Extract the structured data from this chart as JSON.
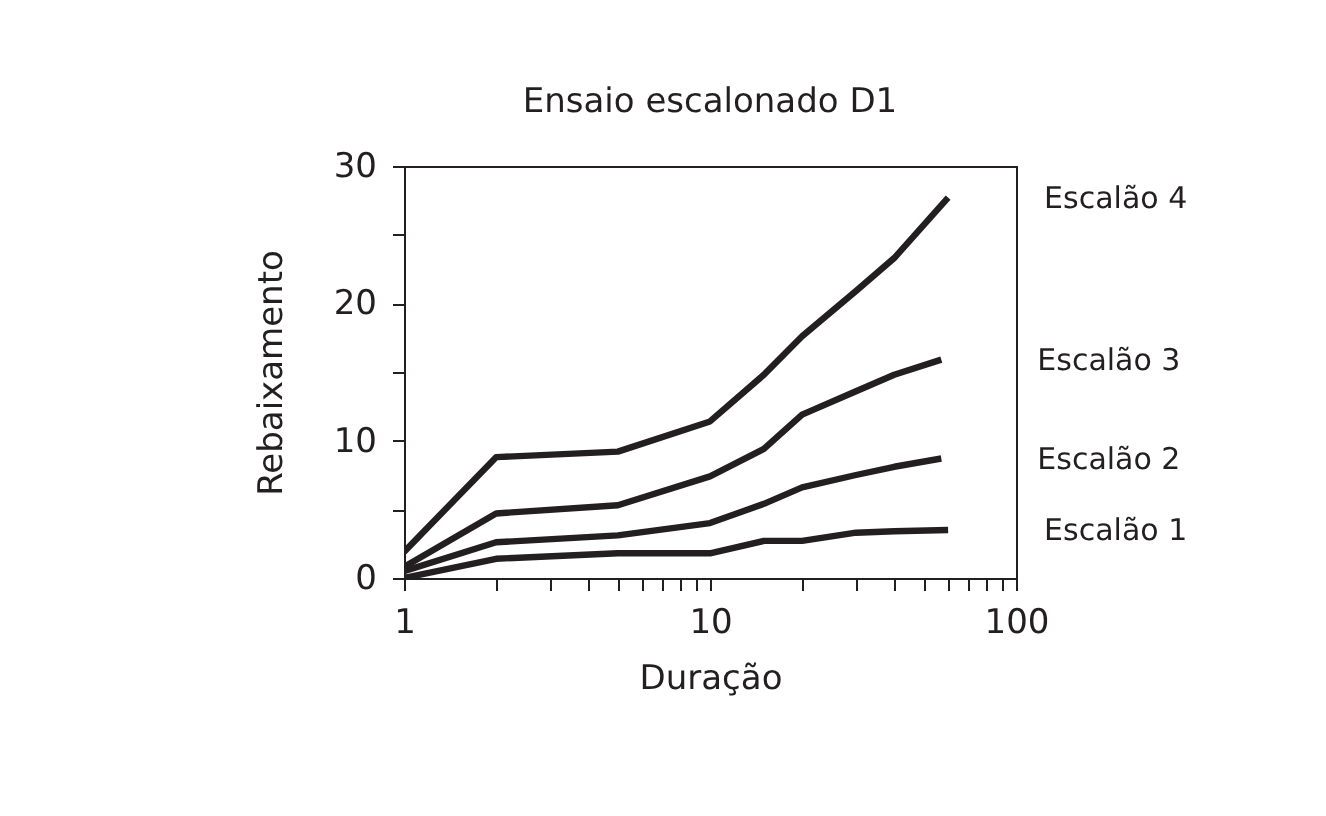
{
  "chart_data": {
    "type": "line",
    "title": "Ensaio escalonado D1",
    "xlabel": "Duração",
    "ylabel": "Rebaixamento",
    "log": "x",
    "grid": false,
    "legend": false,
    "marker": "none",
    "line_style": "solid",
    "xlim": [
      1,
      100
    ],
    "xticks": [
      1,
      {
        "value": 2,
        "label": null
      },
      {
        "value": 3,
        "label": null
      },
      {
        "value": 4,
        "label": null
      },
      {
        "value": 5,
        "label": null
      },
      {
        "value": 6,
        "label": null
      },
      {
        "value": 7,
        "label": null
      },
      {
        "value": 8,
        "label": null
      },
      {
        "value": 9,
        "label": null
      },
      10,
      {
        "value": 20,
        "label": null
      },
      {
        "value": 30,
        "label": null
      },
      {
        "value": 40,
        "label": null
      },
      {
        "value": 50,
        "label": null
      },
      {
        "value": 60,
        "label": null
      },
      {
        "value": 70,
        "label": null
      },
      {
        "value": 80,
        "label": null
      },
      {
        "value": 90,
        "label": null
      },
      100
    ],
    "ylim": [
      0,
      30
    ],
    "yticks": [
      0,
      {
        "value": 5,
        "label": null
      },
      10,
      {
        "value": 15,
        "label": null
      },
      20,
      {
        "value": 25,
        "label": null
      },
      30
    ],
    "series": [
      {
        "name": "Escalão 4",
        "color": "#231f20",
        "x": [
          1,
          2,
          5,
          10,
          15,
          20,
          30,
          40,
          60
        ],
        "values": [
          1.9,
          8.8,
          9.2,
          11.4,
          14.8,
          17.6,
          20.9,
          23.3,
          27.7
        ]
      },
      {
        "name": "Escalão 3",
        "color": "#231f20",
        "x": [
          1,
          2,
          5,
          10,
          15,
          20,
          30,
          40,
          57
        ],
        "values": [
          0.8,
          4.7,
          5.3,
          7.4,
          9.4,
          11.9,
          13.6,
          14.8,
          15.9
        ]
      },
      {
        "name": "Escalão 2",
        "color": "#231f20",
        "x": [
          1,
          2,
          5,
          10,
          15,
          20,
          30,
          40,
          57
        ],
        "values": [
          0.5,
          2.6,
          3.1,
          4.0,
          5.4,
          6.6,
          7.5,
          8.1,
          8.7
        ]
      },
      {
        "name": "Escalão 1",
        "color": "#231f20",
        "x": [
          1,
          2,
          5,
          10,
          15,
          20,
          30,
          40,
          60
        ],
        "values": [
          0,
          1.4,
          1.8,
          1.8,
          2.7,
          2.7,
          3.3,
          3.4,
          3.5
        ]
      }
    ]
  }
}
